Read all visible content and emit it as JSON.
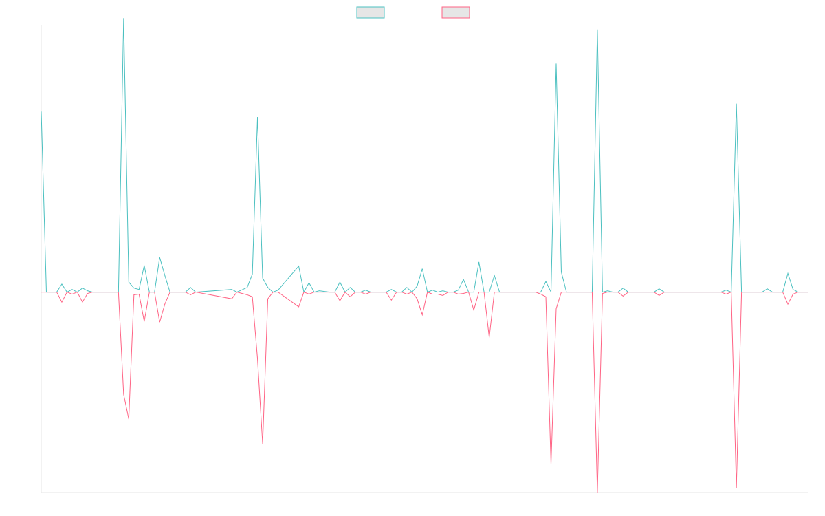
{
  "chart_data": {
    "type": "line",
    "title": "",
    "xlabel": "",
    "ylabel": "",
    "legend": {
      "placement": "top-center"
    },
    "grid": false,
    "ylim": [
      -300,
      400
    ],
    "x_count": 150,
    "series": [
      {
        "name": "",
        "color": "#4bc0c0",
        "fill": "#e6e6e6",
        "points": [
          [
            0,
            270
          ],
          [
            1,
            0
          ],
          [
            2,
            0
          ],
          [
            3,
            0
          ],
          [
            4,
            12
          ],
          [
            5,
            0
          ],
          [
            6,
            4
          ],
          [
            7,
            0
          ],
          [
            8,
            6
          ],
          [
            9,
            2
          ],
          [
            10,
            0
          ],
          [
            11,
            0
          ],
          [
            12,
            0
          ],
          [
            13,
            0
          ],
          [
            14,
            0
          ],
          [
            15,
            0
          ],
          [
            16,
            410
          ],
          [
            17,
            15
          ],
          [
            18,
            6
          ],
          [
            19,
            4
          ],
          [
            20,
            40
          ],
          [
            21,
            0
          ],
          [
            22,
            0
          ],
          [
            23,
            52
          ],
          [
            24,
            25
          ],
          [
            25,
            0
          ],
          [
            26,
            0
          ],
          [
            27,
            0
          ],
          [
            28,
            0
          ],
          [
            29,
            7
          ],
          [
            30,
            0
          ],
          [
            37,
            4
          ],
          [
            38,
            0
          ],
          [
            40,
            7
          ],
          [
            41,
            27
          ],
          [
            42,
            262
          ],
          [
            43,
            21
          ],
          [
            44,
            7
          ],
          [
            45,
            0
          ],
          [
            46,
            3
          ],
          [
            50,
            39
          ],
          [
            51,
            0
          ],
          [
            52,
            14
          ],
          [
            53,
            0
          ],
          [
            54,
            2
          ],
          [
            56,
            0
          ],
          [
            57,
            0
          ],
          [
            58,
            15
          ],
          [
            59,
            0
          ],
          [
            60,
            7
          ],
          [
            61,
            0
          ],
          [
            62,
            0
          ],
          [
            63,
            3
          ],
          [
            64,
            0
          ],
          [
            65,
            0
          ],
          [
            67,
            0
          ],
          [
            68,
            4
          ],
          [
            69,
            0
          ],
          [
            70,
            0
          ],
          [
            71,
            7
          ],
          [
            72,
            0
          ],
          [
            73,
            9
          ],
          [
            74,
            35
          ],
          [
            75,
            0
          ],
          [
            76,
            3
          ],
          [
            77,
            0
          ],
          [
            78,
            2
          ],
          [
            79,
            0
          ],
          [
            80,
            0
          ],
          [
            81,
            3
          ],
          [
            82,
            19
          ],
          [
            83,
            0
          ],
          [
            84,
            0
          ],
          [
            85,
            45
          ],
          [
            86,
            0
          ],
          [
            87,
            0
          ],
          [
            88,
            25
          ],
          [
            89,
            0
          ],
          [
            90,
            0
          ],
          [
            91,
            0
          ],
          [
            92,
            0
          ],
          [
            93,
            0
          ],
          [
            94,
            0
          ],
          [
            96,
            0
          ],
          [
            97,
            0
          ],
          [
            98,
            16
          ],
          [
            99,
            0
          ],
          [
            100,
            342
          ],
          [
            101,
            30
          ],
          [
            102,
            0
          ],
          [
            103,
            0
          ],
          [
            104,
            0
          ],
          [
            105,
            0
          ],
          [
            106,
            0
          ],
          [
            107,
            0
          ],
          [
            108,
            393
          ],
          [
            109,
            0
          ],
          [
            110,
            2
          ],
          [
            111,
            0
          ],
          [
            112,
            0
          ],
          [
            113,
            6
          ],
          [
            114,
            0
          ],
          [
            115,
            0
          ],
          [
            116,
            0
          ],
          [
            117,
            0
          ],
          [
            118,
            0
          ],
          [
            119,
            0
          ],
          [
            120,
            5
          ],
          [
            121,
            0
          ],
          [
            122,
            0
          ],
          [
            123,
            0
          ],
          [
            124,
            0
          ],
          [
            125,
            0
          ],
          [
            126,
            0
          ],
          [
            127,
            0
          ],
          [
            128,
            0
          ],
          [
            129,
            0
          ],
          [
            130,
            0
          ],
          [
            131,
            0
          ],
          [
            132,
            0
          ],
          [
            133,
            3
          ],
          [
            134,
            0
          ],
          [
            135,
            282
          ],
          [
            136,
            0
          ],
          [
            137,
            0
          ],
          [
            138,
            0
          ],
          [
            139,
            0
          ],
          [
            140,
            0
          ],
          [
            141,
            5
          ],
          [
            142,
            0
          ],
          [
            143,
            0
          ],
          [
            144,
            0
          ],
          [
            145,
            28
          ],
          [
            146,
            4
          ],
          [
            147,
            0
          ],
          [
            148,
            0
          ],
          [
            149,
            0
          ]
        ]
      },
      {
        "name": "",
        "color": "#ff6384",
        "fill": "#e6e6e6",
        "points": [
          [
            0,
            0
          ],
          [
            1,
            0
          ],
          [
            2,
            0
          ],
          [
            3,
            0
          ],
          [
            4,
            -15
          ],
          [
            5,
            0
          ],
          [
            6,
            -3
          ],
          [
            7,
            0
          ],
          [
            8,
            -15
          ],
          [
            9,
            -2
          ],
          [
            10,
            0
          ],
          [
            11,
            0
          ],
          [
            12,
            0
          ],
          [
            13,
            0
          ],
          [
            14,
            0
          ],
          [
            15,
            0
          ],
          [
            16,
            -153
          ],
          [
            17,
            -190
          ],
          [
            18,
            -4
          ],
          [
            19,
            -3
          ],
          [
            20,
            -44
          ],
          [
            21,
            0
          ],
          [
            22,
            0
          ],
          [
            23,
            -45
          ],
          [
            24,
            -18
          ],
          [
            25,
            0
          ],
          [
            26,
            0
          ],
          [
            27,
            0
          ],
          [
            28,
            0
          ],
          [
            29,
            -4
          ],
          [
            30,
            0
          ],
          [
            37,
            -10
          ],
          [
            38,
            0
          ],
          [
            40,
            -4
          ],
          [
            41,
            -7
          ],
          [
            42,
            -100
          ],
          [
            43,
            -227
          ],
          [
            44,
            -10
          ],
          [
            45,
            0
          ],
          [
            46,
            0
          ],
          [
            50,
            -22
          ],
          [
            51,
            0
          ],
          [
            52,
            -3
          ],
          [
            53,
            0
          ],
          [
            54,
            0
          ],
          [
            56,
            0
          ],
          [
            57,
            0
          ],
          [
            58,
            -13
          ],
          [
            59,
            0
          ],
          [
            60,
            -7
          ],
          [
            61,
            0
          ],
          [
            62,
            0
          ],
          [
            63,
            -3
          ],
          [
            64,
            0
          ],
          [
            65,
            0
          ],
          [
            67,
            0
          ],
          [
            68,
            -12
          ],
          [
            69,
            0
          ],
          [
            70,
            0
          ],
          [
            71,
            -3
          ],
          [
            72,
            0
          ],
          [
            73,
            -10
          ],
          [
            74,
            -34
          ],
          [
            75,
            0
          ],
          [
            76,
            -3
          ],
          [
            77,
            -3
          ],
          [
            78,
            -5
          ],
          [
            79,
            0
          ],
          [
            80,
            0
          ],
          [
            81,
            -3
          ],
          [
            82,
            -2
          ],
          [
            83,
            0
          ],
          [
            84,
            -27
          ],
          [
            85,
            0
          ],
          [
            86,
            0
          ],
          [
            87,
            -68
          ],
          [
            88,
            0
          ],
          [
            89,
            0
          ],
          [
            90,
            0
          ],
          [
            91,
            0
          ],
          [
            92,
            0
          ],
          [
            93,
            0
          ],
          [
            94,
            0
          ],
          [
            96,
            0
          ],
          [
            97,
            -3
          ],
          [
            98,
            -7
          ],
          [
            99,
            -258
          ],
          [
            100,
            -25
          ],
          [
            101,
            0
          ],
          [
            102,
            0
          ],
          [
            103,
            0
          ],
          [
            104,
            0
          ],
          [
            105,
            0
          ],
          [
            106,
            0
          ],
          [
            107,
            0
          ],
          [
            108,
            -300
          ],
          [
            109,
            -2
          ],
          [
            110,
            0
          ],
          [
            111,
            0
          ],
          [
            112,
            0
          ],
          [
            113,
            -6
          ],
          [
            114,
            0
          ],
          [
            115,
            0
          ],
          [
            116,
            0
          ],
          [
            117,
            0
          ],
          [
            118,
            0
          ],
          [
            119,
            0
          ],
          [
            120,
            -5
          ],
          [
            121,
            0
          ],
          [
            122,
            0
          ],
          [
            123,
            0
          ],
          [
            124,
            0
          ],
          [
            125,
            0
          ],
          [
            126,
            0
          ],
          [
            127,
            0
          ],
          [
            128,
            0
          ],
          [
            129,
            0
          ],
          [
            130,
            0
          ],
          [
            131,
            0
          ],
          [
            132,
            0
          ],
          [
            133,
            -3
          ],
          [
            134,
            0
          ],
          [
            135,
            -293
          ],
          [
            136,
            0
          ],
          [
            137,
            0
          ],
          [
            138,
            0
          ],
          [
            139,
            0
          ],
          [
            140,
            0
          ],
          [
            141,
            0
          ],
          [
            142,
            0
          ],
          [
            143,
            0
          ],
          [
            144,
            0
          ],
          [
            145,
            -18
          ],
          [
            146,
            -3
          ],
          [
            147,
            0
          ],
          [
            148,
            0
          ],
          [
            149,
            0
          ]
        ]
      }
    ]
  }
}
